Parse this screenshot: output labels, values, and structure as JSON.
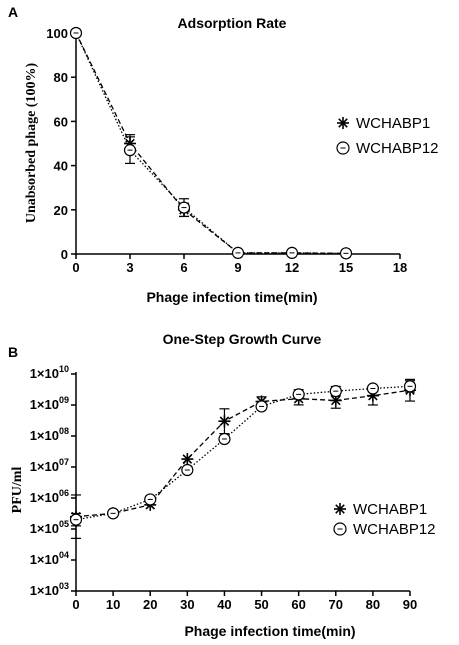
{
  "chart_data": [
    {
      "panel": "A",
      "type": "line",
      "title": "Adsorption Rate",
      "xlabel": "Phage infection time(min)",
      "ylabel": "Unabsorbed phage (100%)",
      "xlim": [
        0,
        18
      ],
      "ylim": [
        0,
        100
      ],
      "x_ticks": [
        "0",
        "3",
        "6",
        "9",
        "12",
        "15",
        "18"
      ],
      "y_ticks": [
        "0",
        "20",
        "40",
        "60",
        "80",
        "100"
      ],
      "legend_position": "right",
      "series": [
        {
          "name": "WCHABP1",
          "marker": "asterisk",
          "line": "dashed",
          "x": [
            0,
            3,
            6,
            9,
            12,
            15
          ],
          "y": [
            100,
            50,
            20,
            0.5,
            0.5,
            0.3
          ],
          "err": [
            0,
            4,
            3,
            0.5,
            0.5,
            0.3
          ]
        },
        {
          "name": "WCHABP12",
          "marker": "circle",
          "line": "dotted",
          "x": [
            0,
            3,
            6,
            9,
            12,
            15
          ],
          "y": [
            100,
            47,
            21,
            0.5,
            0.5,
            0.3
          ],
          "err": [
            0,
            6,
            4,
            0.5,
            0.5,
            0.3
          ]
        }
      ]
    },
    {
      "panel": "B",
      "type": "line",
      "title": "One-Step Growth Curve",
      "xlabel": "Phage infection time(min)",
      "ylabel": "PFU/ml",
      "yscale": "log",
      "xlim": [
        0,
        90
      ],
      "ylim": [
        1000,
        10000000000
      ],
      "x_ticks": [
        "0",
        "10",
        "20",
        "30",
        "40",
        "50",
        "60",
        "70",
        "80",
        "90"
      ],
      "y_tick_exponents": [
        "03",
        "04",
        "05",
        "06",
        "07",
        "08",
        "09",
        "10"
      ],
      "y_tick_base": "1×10",
      "legend_position": "right",
      "series": [
        {
          "name": "WCHABP1",
          "marker": "asterisk",
          "line": "dashed",
          "x": [
            0,
            10,
            20,
            30,
            40,
            50,
            60,
            70,
            80,
            90
          ],
          "y": [
            250000,
            320000,
            600000,
            18000000,
            300000000,
            1300000000,
            1600000000,
            1400000000,
            2000000000,
            3000000000
          ],
          "err_log": [
            0.7,
            0.05,
            0.06,
            0.05,
            0.4,
            0.15,
            0.2,
            0.25,
            0.3,
            0.35
          ]
        },
        {
          "name": "WCHABP12",
          "marker": "circle",
          "line": "dotted",
          "x": [
            0,
            10,
            20,
            30,
            40,
            50,
            60,
            70,
            80,
            90
          ],
          "y": [
            200000,
            320000,
            900000,
            8000000,
            80000000,
            900000000,
            2200000000,
            2800000000,
            3400000000,
            4000000000
          ],
          "err_log": [
            0.2,
            0.05,
            0.06,
            0.05,
            0.08,
            0.1,
            0.15,
            0.15,
            0.1,
            0.18
          ]
        }
      ]
    }
  ]
}
